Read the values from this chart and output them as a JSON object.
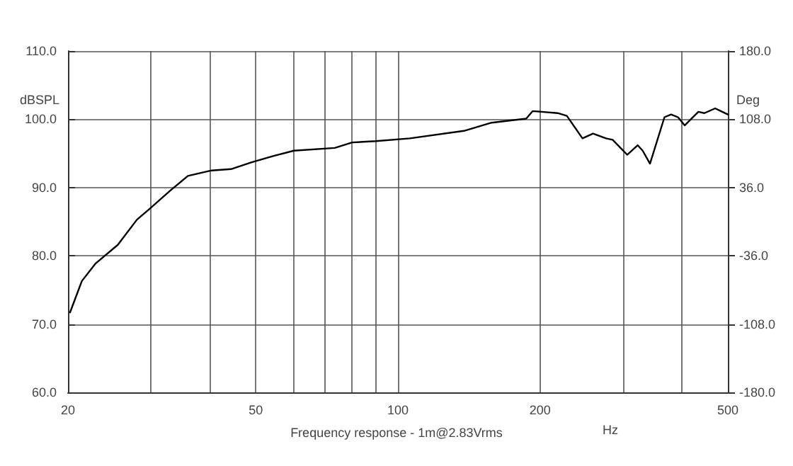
{
  "chart_data": {
    "type": "line",
    "xlabel": "Hz",
    "ylabel": "dBSPL",
    "y2label": "Deg",
    "annotations": [
      "Frequency response - 1m@2.83Vrms"
    ],
    "log": "x",
    "grid": true,
    "marker": "none",
    "line_style": "solid",
    "xlim": [
      20,
      500
    ],
    "xticks": [
      20,
      {
        "value": 30,
        "label": null
      },
      {
        "value": 40,
        "label": null
      },
      50,
      {
        "value": 60,
        "label": null
      },
      {
        "value": 70,
        "label": null
      },
      {
        "value": 80,
        "label": null
      },
      {
        "value": 90,
        "label": null
      },
      100,
      200,
      {
        "value": 300,
        "label": null
      },
      {
        "value": 400,
        "label": null
      },
      500
    ],
    "ylim": [
      60,
      110
    ],
    "yticks": [
      {
        "value": 60,
        "label": "60.0"
      },
      {
        "value": 70,
        "label": "70.0"
      },
      {
        "value": 80,
        "label": "80.0"
      },
      {
        "value": 90,
        "label": "90.0"
      },
      {
        "value": 100,
        "label": "100.0"
      },
      {
        "value": 110,
        "label": "110.0"
      }
    ],
    "y2lim": [
      -180,
      180
    ],
    "y2ticks": [
      {
        "value": -180,
        "label": "-180.0"
      },
      {
        "value": -108,
        "label": "-108.0"
      },
      {
        "value": -36,
        "label": "-36.0"
      },
      {
        "value": 36,
        "label": "36.0"
      },
      {
        "value": 108,
        "label": "108.0"
      },
      {
        "value": 180,
        "label": "180.0"
      }
    ],
    "series": [
      {
        "color": "#000000",
        "x": [
          20.2,
          21.4,
          22.9,
          25.5,
          28.0,
          29.7,
          33.0,
          35.9,
          40.3,
          44.3,
          49.0,
          54.4,
          60.2,
          73.5,
          80,
          89.9,
          106,
          138,
          158,
          187,
          193,
          218,
          228,
          246,
          259,
          276,
          285,
          306,
          322,
          330,
          342,
          367,
          379,
          392,
          405,
          433,
          446,
          470,
          483,
          500
        ],
        "values": [
          71.7,
          76.3,
          78.9,
          81.6,
          85.3,
          86.8,
          89.6,
          91.7,
          92.5,
          92.7,
          93.7,
          94.6,
          95.4,
          95.8,
          96.6,
          96.8,
          97.2,
          98.3,
          99.5,
          100.1,
          101.2,
          100.9,
          100.5,
          97.2,
          97.9,
          97.2,
          97.0,
          94.8,
          96.2,
          95.4,
          93.5,
          100.3,
          100.7,
          100.3,
          99.1,
          101.1,
          100.9,
          101.6,
          101.2,
          100.7
        ]
      }
    ]
  }
}
